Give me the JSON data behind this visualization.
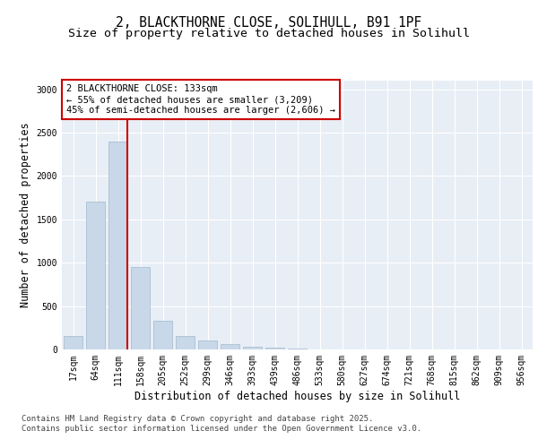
{
  "title_line1": "2, BLACKTHORNE CLOSE, SOLIHULL, B91 1PF",
  "title_line2": "Size of property relative to detached houses in Solihull",
  "xlabel": "Distribution of detached houses by size in Solihull",
  "ylabel": "Number of detached properties",
  "categories": [
    "17sqm",
    "64sqm",
    "111sqm",
    "158sqm",
    "205sqm",
    "252sqm",
    "299sqm",
    "346sqm",
    "393sqm",
    "439sqm",
    "486sqm",
    "533sqm",
    "580sqm",
    "627sqm",
    "674sqm",
    "721sqm",
    "768sqm",
    "815sqm",
    "862sqm",
    "909sqm",
    "956sqm"
  ],
  "values": [
    150,
    1700,
    2400,
    950,
    330,
    150,
    100,
    60,
    30,
    20,
    10,
    5,
    5,
    2,
    2,
    1,
    1,
    1,
    1,
    1,
    1
  ],
  "bar_color": "#c8d8e8",
  "bar_edgecolor": "#a0b8d0",
  "bar_linewidth": 0.5,
  "red_line_xindex": 2,
  "red_line_color": "#cc0000",
  "annotation_text": "2 BLACKTHORNE CLOSE: 133sqm\n← 55% of detached houses are smaller (3,209)\n45% of semi-detached houses are larger (2,606) →",
  "annotation_box_facecolor": "#ffffff",
  "annotation_box_edgecolor": "#cc0000",
  "ylim": [
    0,
    3100
  ],
  "yticks": [
    0,
    500,
    1000,
    1500,
    2000,
    2500,
    3000
  ],
  "background_color": "#e8eef5",
  "footer_line1": "Contains HM Land Registry data © Crown copyright and database right 2025.",
  "footer_line2": "Contains public sector information licensed under the Open Government Licence v3.0.",
  "title_fontsize": 10.5,
  "subtitle_fontsize": 9.5,
  "axis_label_fontsize": 8.5,
  "tick_fontsize": 7,
  "annotation_fontsize": 7.5,
  "footer_fontsize": 6.5
}
